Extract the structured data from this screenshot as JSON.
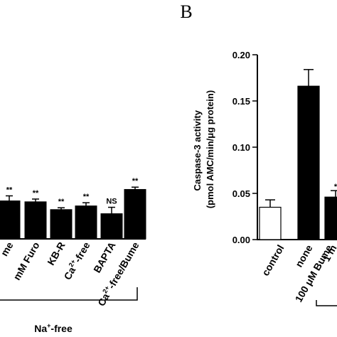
{
  "chart_data": [
    {
      "type": "bar",
      "panel_label": "",
      "ylabel": "",
      "ylim": [
        0,
        0.2
      ],
      "categories": [
        "me",
        "mM Furo",
        "KB-R",
        "Ca²⁺-free",
        "BAPTA",
        "Ca²⁺-free/Bume"
      ],
      "category_labels": [
        {
          "main": "me"
        },
        {
          "main": "mM Furo"
        },
        {
          "main": "KB-R"
        },
        {
          "pre": "Ca",
          "sup": "2+",
          "post": "-free"
        },
        {
          "main": "BAPTA"
        },
        {
          "pre": "Ca",
          "sup": "2+",
          "post": "-free/Bume"
        }
      ],
      "values": [
        0.083,
        0.081,
        0.064,
        0.072,
        0.055,
        0.108
      ],
      "errors": [
        0.011,
        0.006,
        0.004,
        0.007,
        0.014,
        0.005
      ],
      "significance": [
        "**",
        "**",
        "**",
        "**",
        "NS",
        "**"
      ],
      "bar_colors": [
        "#000000",
        "#000000",
        "#000000",
        "#000000",
        "#000000",
        "#000000"
      ],
      "group_label": {
        "pre": "Na",
        "sup": "+",
        "post": "-free"
      }
    },
    {
      "type": "bar",
      "panel_label": "B",
      "ylabel": [
        "Caspase-3 activity",
        "(pmol AMC/min/μg protein)"
      ],
      "ylim": [
        0,
        0.2
      ],
      "yticks": [
        "0.00",
        "0.05",
        "0.10",
        "0.15",
        "0.20"
      ],
      "categories": [
        "control",
        "none",
        "100 μM Bume",
        "1 m"
      ],
      "values": [
        0.035,
        0.166,
        0.046,
        null
      ],
      "errors": [
        0.008,
        0.018,
        0.007,
        null
      ],
      "significance": [
        "",
        "",
        "*",
        ""
      ],
      "bar_colors": [
        "#ffffff",
        "#000000",
        "#000000",
        "#000000"
      ]
    }
  ]
}
